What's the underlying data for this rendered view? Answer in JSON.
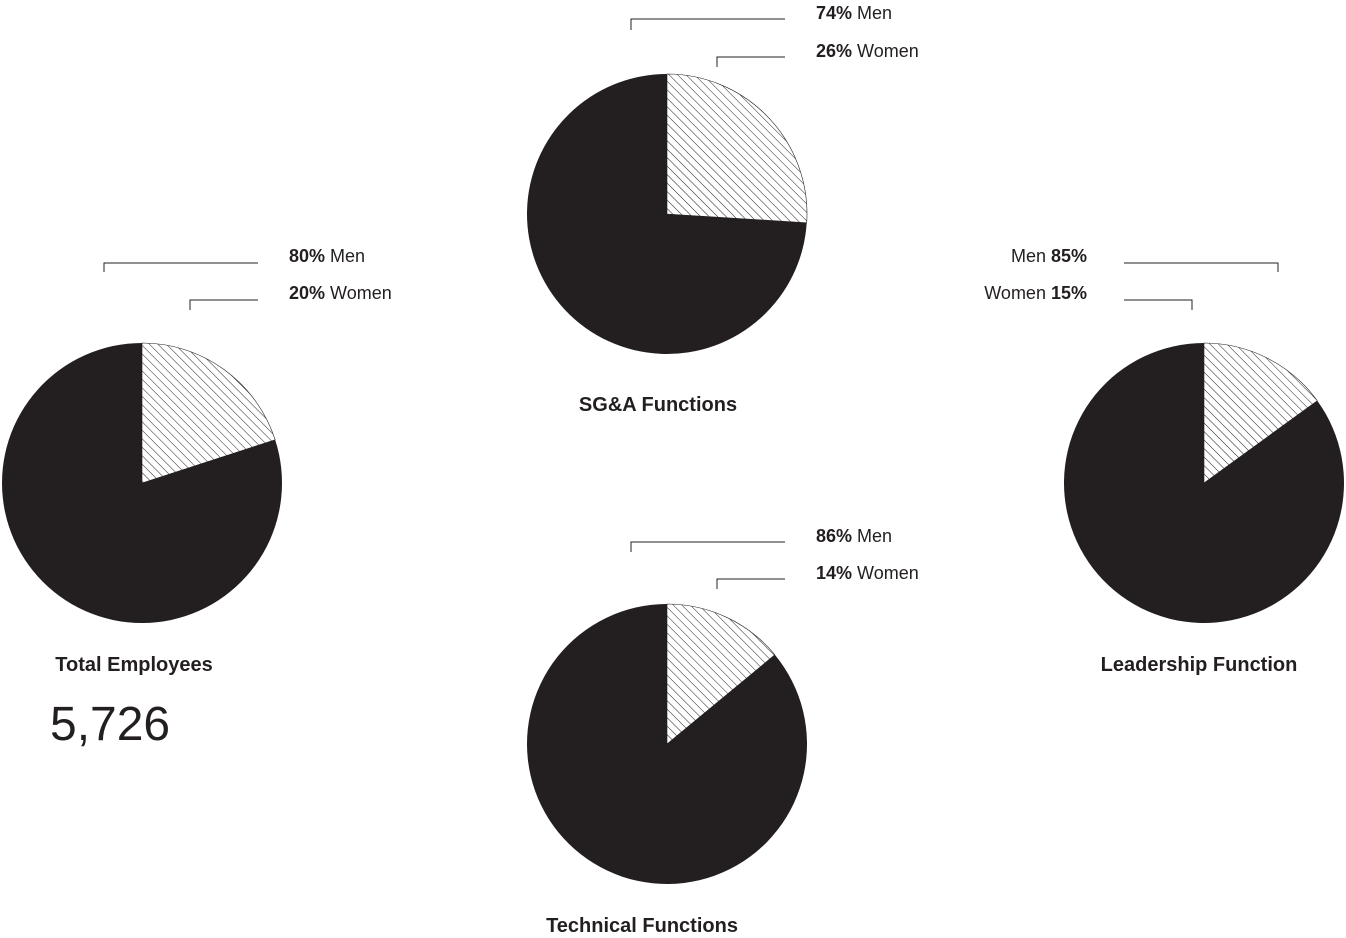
{
  "chart_data": [
    {
      "type": "pie",
      "title": "Total Employees",
      "total": "5,726",
      "slices": [
        {
          "name": "Men",
          "value": 80,
          "label": "80%",
          "fill": "#231f20"
        },
        {
          "name": "Women",
          "value": 20,
          "label": "20%",
          "fill": "hatch"
        }
      ]
    },
    {
      "type": "pie",
      "title": "SG&A Functions",
      "slices": [
        {
          "name": "Men",
          "value": 74,
          "label": "74%",
          "fill": "#231f20"
        },
        {
          "name": "Women",
          "value": 26,
          "label": "26%",
          "fill": "hatch"
        }
      ]
    },
    {
      "type": "pie",
      "title": "Technical Functions",
      "slices": [
        {
          "name": "Men",
          "value": 86,
          "label": "86%",
          "fill": "#231f20"
        },
        {
          "name": "Women",
          "value": 14,
          "label": "14%",
          "fill": "hatch"
        }
      ]
    },
    {
      "type": "pie",
      "title": "Leadership Function",
      "slices": [
        {
          "name": "Men",
          "value": 85,
          "label": "85%",
          "fill": "#231f20"
        },
        {
          "name": "Women",
          "value": 15,
          "label": "15%",
          "fill": "hatch"
        }
      ]
    }
  ],
  "colors": {
    "ink": "#231f20",
    "background": "#ffffff"
  }
}
